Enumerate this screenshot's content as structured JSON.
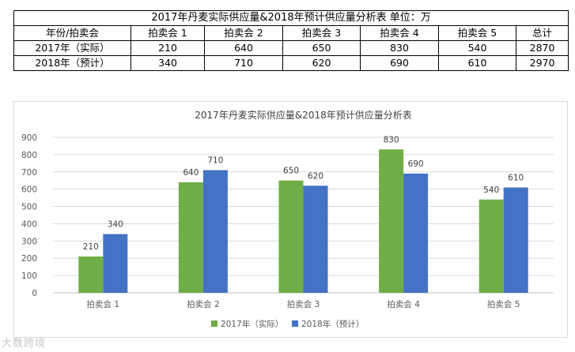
{
  "table": {
    "title": "2017年丹麦实际供应量&2018年预计供应量分析表  单位：万",
    "header": [
      "年份/拍卖会",
      "拍卖会 1",
      "拍卖会 2",
      "拍卖会 3",
      "拍卖会 4",
      "拍卖会 5",
      "总计"
    ],
    "rows": [
      [
        "2017年（实际）",
        "210",
        "640",
        "650",
        "830",
        "540",
        "2870"
      ],
      [
        "2018年（预计）",
        "340",
        "710",
        "620",
        "690",
        "610",
        "2970"
      ]
    ]
  },
  "chart_data": {
    "type": "bar",
    "title": "2017年丹麦实际供应量&2018年预计供应量分析表",
    "categories": [
      "拍卖会 1",
      "拍卖会 2",
      "拍卖会 3",
      "拍卖会 4",
      "拍卖会 5"
    ],
    "series": [
      {
        "name": "2017年（实际）",
        "values": [
          210,
          640,
          650,
          830,
          540
        ],
        "color": "#70AD47"
      },
      {
        "name": "2018年（预计）",
        "values": [
          340,
          710,
          620,
          690,
          610
        ],
        "color": "#4472C4"
      }
    ],
    "ylim": [
      0,
      900
    ],
    "yticks": [
      0,
      100,
      200,
      300,
      400,
      500,
      600,
      700,
      800,
      900
    ],
    "grid": true,
    "legend": "bottom",
    "data_labels": true
  },
  "watermark": "大数跨境"
}
